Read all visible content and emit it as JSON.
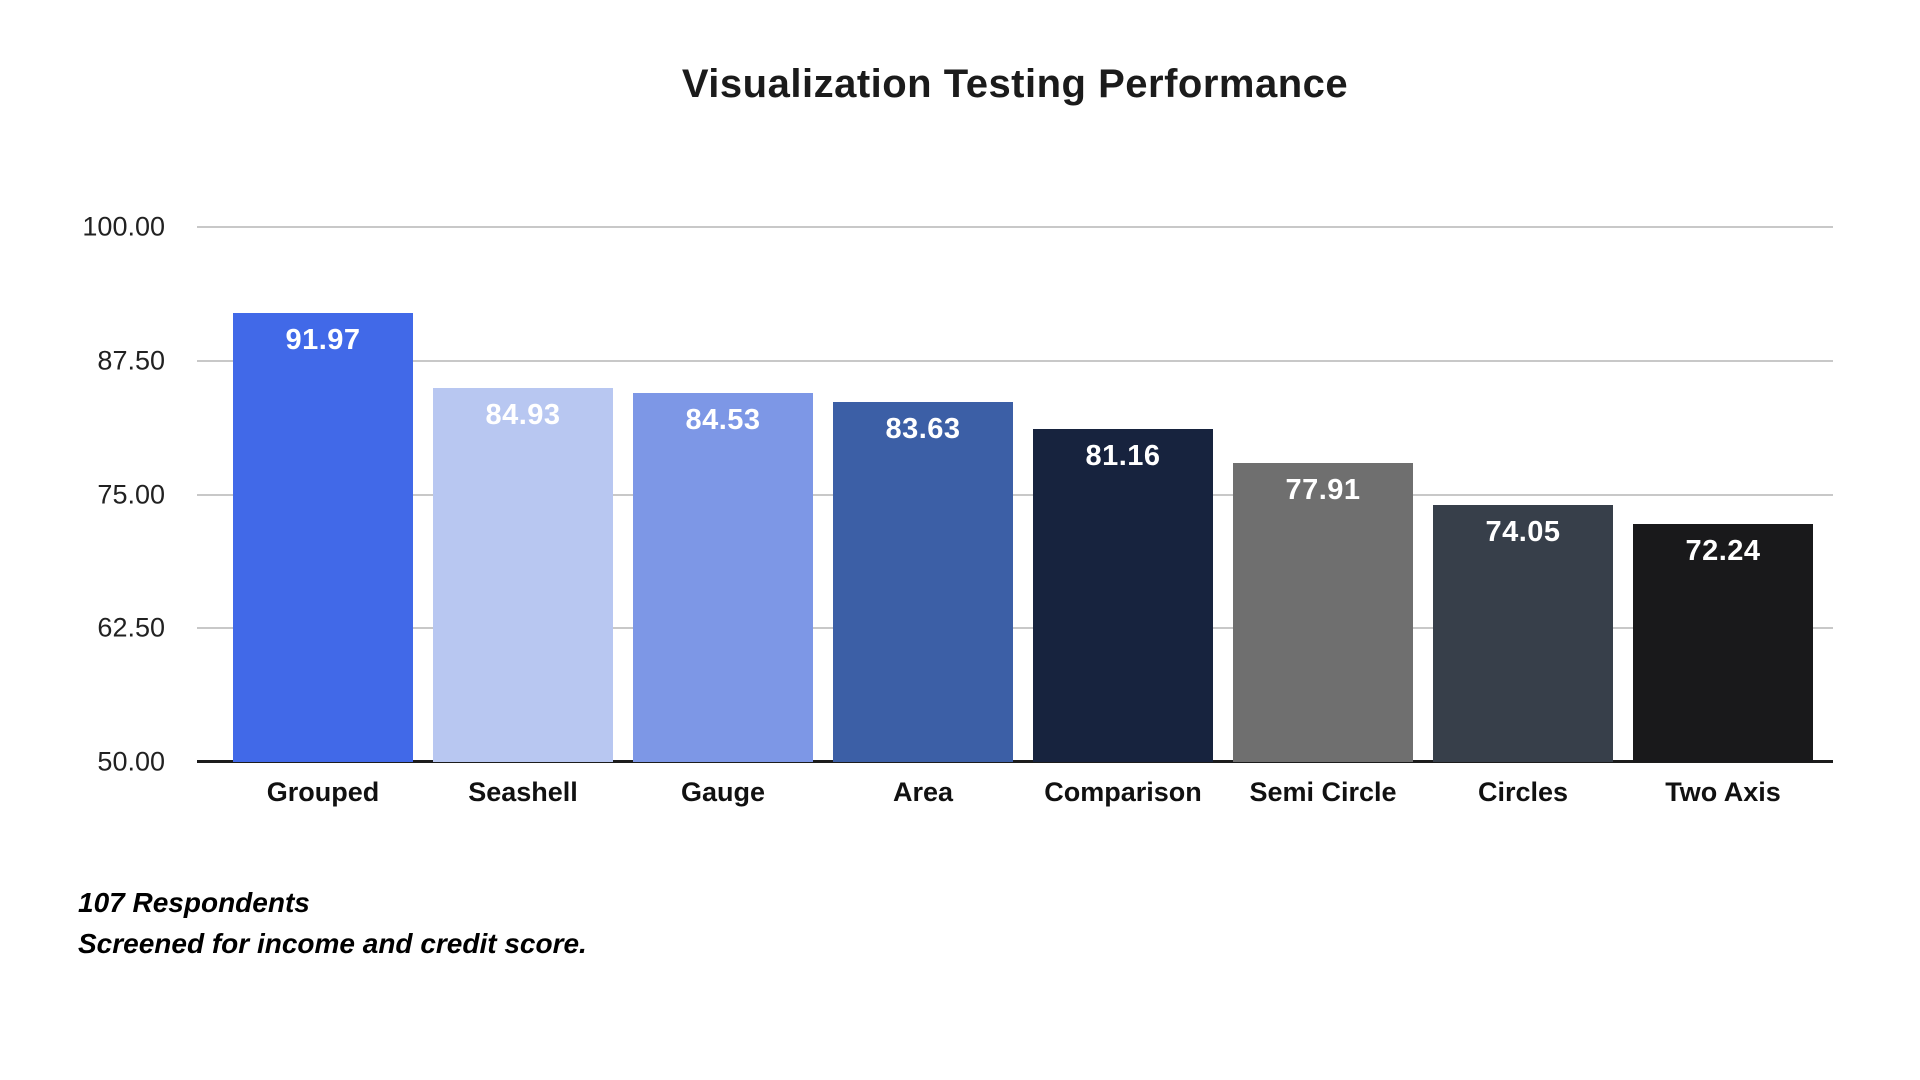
{
  "title": "Visualization Testing Performance",
  "notes": {
    "line1": "107 Respondents",
    "line2": "Screened for income and credit score."
  },
  "y_axis": {
    "tick_labels": [
      "100.00",
      "87.50",
      "75.00",
      "62.50",
      "50.00"
    ]
  },
  "colors": {
    "gridline": "#c8c8c8",
    "axis_line": "#1c1c1c",
    "title_text": "#1b1b1b",
    "value_label_text": "#ffffff"
  },
  "chart_data": {
    "type": "bar",
    "title": "Visualization Testing Performance",
    "categories": [
      "Grouped",
      "Seashell",
      "Gauge",
      "Area",
      "Comparison",
      "Semi Circle",
      "Circles",
      "Two Axis"
    ],
    "values": [
      91.97,
      84.93,
      84.53,
      83.63,
      81.16,
      77.91,
      74.05,
      72.24
    ],
    "value_labels": [
      "91.97",
      "84.93",
      "84.53",
      "83.63",
      "81.16",
      "77.91",
      "74.05",
      "72.24"
    ],
    "bar_colors": [
      "#4169e8",
      "#b8c7f1",
      "#7d97e6",
      "#3c5fa6",
      "#17233e",
      "#6f6f6f",
      "#373f4a",
      "#19191b"
    ],
    "xlabel": "",
    "ylabel": "",
    "ylim": [
      50,
      100
    ],
    "yticks": [
      100,
      87.5,
      75,
      62.5,
      50
    ],
    "grid": true,
    "legend": false,
    "annotations": [
      "107 Respondents",
      "Screened for income and credit score."
    ]
  }
}
